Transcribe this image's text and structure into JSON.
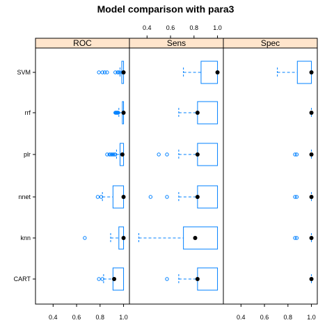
{
  "chart_data": {
    "type": "box-and-whisker",
    "title": "Model comparison with para3",
    "panels": [
      "ROC",
      "Sens",
      "Spec"
    ],
    "models": [
      "CART",
      "knn",
      "nnet",
      "plr",
      "rrf",
      "SVM"
    ],
    "xlim": [
      0.25,
      1.05
    ],
    "ticks": [
      0.4,
      0.6,
      0.8,
      1.0
    ],
    "tick_labels": [
      "0.4",
      "0.6",
      "0.8",
      "1.0"
    ],
    "bottom_tick_panels": [
      "ROC",
      "Spec"
    ],
    "top_tick_panels": [
      "Sens"
    ],
    "colors": {
      "strip": "#FFE5CC",
      "box": "#0080FF",
      "median": "#000000",
      "frame": "#000000"
    },
    "boxes": {
      "ROC": {
        "SVM": {
          "lower_whisker": 0.97,
          "q1": 0.985,
          "median": 1.0,
          "q3": 1.0,
          "upper_whisker": 1.0,
          "outliers": [
            0.79,
            0.82,
            0.84,
            0.86,
            0.93,
            0.95,
            0.96,
            0.97
          ]
        },
        "rrf": {
          "lower_whisker": 0.96,
          "q1": 0.99,
          "median": 1.0,
          "q3": 1.0,
          "upper_whisker": 1.0,
          "outliers": [
            0.93,
            0.935,
            0.94,
            0.945,
            0.95,
            0.955
          ]
        },
        "plr": {
          "lower_whisker": 0.94,
          "q1": 0.97,
          "median": 0.99,
          "q3": 1.0,
          "upper_whisker": 1.0,
          "outliers": [
            0.86,
            0.88,
            0.89,
            0.9,
            0.91,
            0.92,
            0.93
          ]
        },
        "nnet": {
          "lower_whisker": 0.82,
          "q1": 0.91,
          "median": 1.0,
          "q3": 1.0,
          "upper_whisker": 1.0,
          "outliers": [
            0.78,
            0.81
          ]
        },
        "knn": {
          "lower_whisker": 0.89,
          "q1": 0.96,
          "median": 1.0,
          "q3": 1.0,
          "upper_whisker": 1.0,
          "outliers": [
            0.67
          ]
        },
        "CART": {
          "lower_whisker": 0.83,
          "q1": 0.91,
          "median": 0.92,
          "q3": 1.0,
          "upper_whisker": 1.0,
          "outliers": [
            0.79,
            0.82
          ]
        }
      },
      "Sens": {
        "SVM": {
          "lower_whisker": 0.71,
          "q1": 0.86,
          "median": 1.0,
          "q3": 1.0,
          "upper_whisker": 1.0,
          "outliers": []
        },
        "rrf": {
          "lower_whisker": 0.67,
          "q1": 0.83,
          "median": 0.83,
          "q3": 1.0,
          "upper_whisker": 1.0,
          "outliers": []
        },
        "plr": {
          "lower_whisker": 0.67,
          "q1": 0.83,
          "median": 0.83,
          "q3": 1.0,
          "upper_whisker": 1.0,
          "outliers": [
            0.5,
            0.57
          ]
        },
        "nnet": {
          "lower_whisker": 0.67,
          "q1": 0.83,
          "median": 0.83,
          "q3": 1.0,
          "upper_whisker": 1.0,
          "outliers": [
            0.43,
            0.57
          ]
        },
        "knn": {
          "lower_whisker": 0.33,
          "q1": 0.71,
          "median": 0.81,
          "q3": 1.0,
          "upper_whisker": 1.0,
          "outliers": []
        },
        "CART": {
          "lower_whisker": 0.67,
          "q1": 0.83,
          "median": 0.83,
          "q3": 1.0,
          "upper_whisker": 1.0,
          "outliers": [
            0.57
          ]
        }
      },
      "Spec": {
        "SVM": {
          "lower_whisker": 0.71,
          "q1": 0.88,
          "median": 1.0,
          "q3": 1.0,
          "upper_whisker": 1.0,
          "outliers": []
        },
        "rrf": {
          "lower_whisker": 1.0,
          "q1": 1.0,
          "median": 1.0,
          "q3": 1.0,
          "upper_whisker": 1.0,
          "outliers": []
        },
        "plr": {
          "lower_whisker": 1.0,
          "q1": 1.0,
          "median": 1.0,
          "q3": 1.0,
          "upper_whisker": 1.0,
          "outliers": [
            0.86,
            0.875
          ]
        },
        "nnet": {
          "lower_whisker": 1.0,
          "q1": 1.0,
          "median": 1.0,
          "q3": 1.0,
          "upper_whisker": 1.0,
          "outliers": [
            0.86,
            0.875
          ]
        },
        "knn": {
          "lower_whisker": 1.0,
          "q1": 1.0,
          "median": 1.0,
          "q3": 1.0,
          "upper_whisker": 1.0,
          "outliers": [
            0.86,
            0.875
          ]
        },
        "CART": {
          "lower_whisker": 1.0,
          "q1": 1.0,
          "median": 1.0,
          "q3": 1.0,
          "upper_whisker": 1.0,
          "outliers": []
        }
      }
    }
  }
}
